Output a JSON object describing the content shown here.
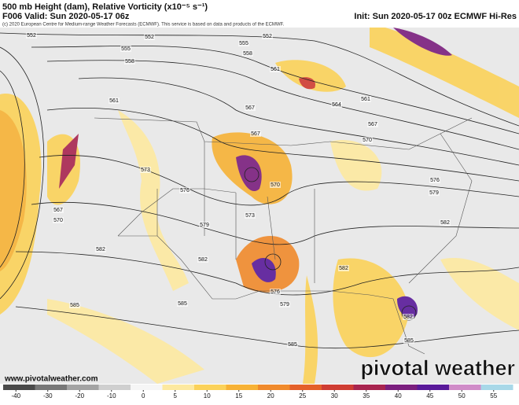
{
  "header": {
    "title": "500 mb Height (dam), Relative Vorticity (x10⁻⁵ s⁻¹)",
    "valid": "F006 Valid: Sun 2020-05-17 06z",
    "init": "Init: Sun 2020-05-17 00z ECMWF Hi-Res",
    "credit": "(c) 2020 European Centre for Medium-range Weather Forecasts (ECMWF). This service is based on data and products of the ECMWF."
  },
  "map": {
    "contour_labels": [
      552,
      552,
      552,
      555,
      558,
      555,
      558,
      561,
      564,
      561,
      561,
      567,
      567,
      567,
      570,
      573,
      576,
      570,
      573,
      579,
      576,
      579,
      582,
      582,
      582,
      582,
      567,
      570,
      576,
      579,
      585,
      585,
      585,
      582,
      585
    ]
  },
  "colorbar": {
    "ticks": [
      -40,
      -30,
      -20,
      -10,
      0,
      5,
      10,
      15,
      20,
      25,
      30,
      35,
      40,
      45,
      50,
      55
    ],
    "colors": [
      "#4a4a4a",
      "#777777",
      "#a3a3a3",
      "#cfcfcf",
      "#f6f6f6",
      "#fde9a0",
      "#fbd25a",
      "#f7b236",
      "#f08a2c",
      "#e4602a",
      "#cf3d33",
      "#a8254f",
      "#7b1f7e",
      "#5a1a9a",
      "#d08cc8",
      "#a8d8e8"
    ]
  },
  "footer": {
    "site": "www.pivotalweather.com",
    "brand": "pivotal weather"
  }
}
